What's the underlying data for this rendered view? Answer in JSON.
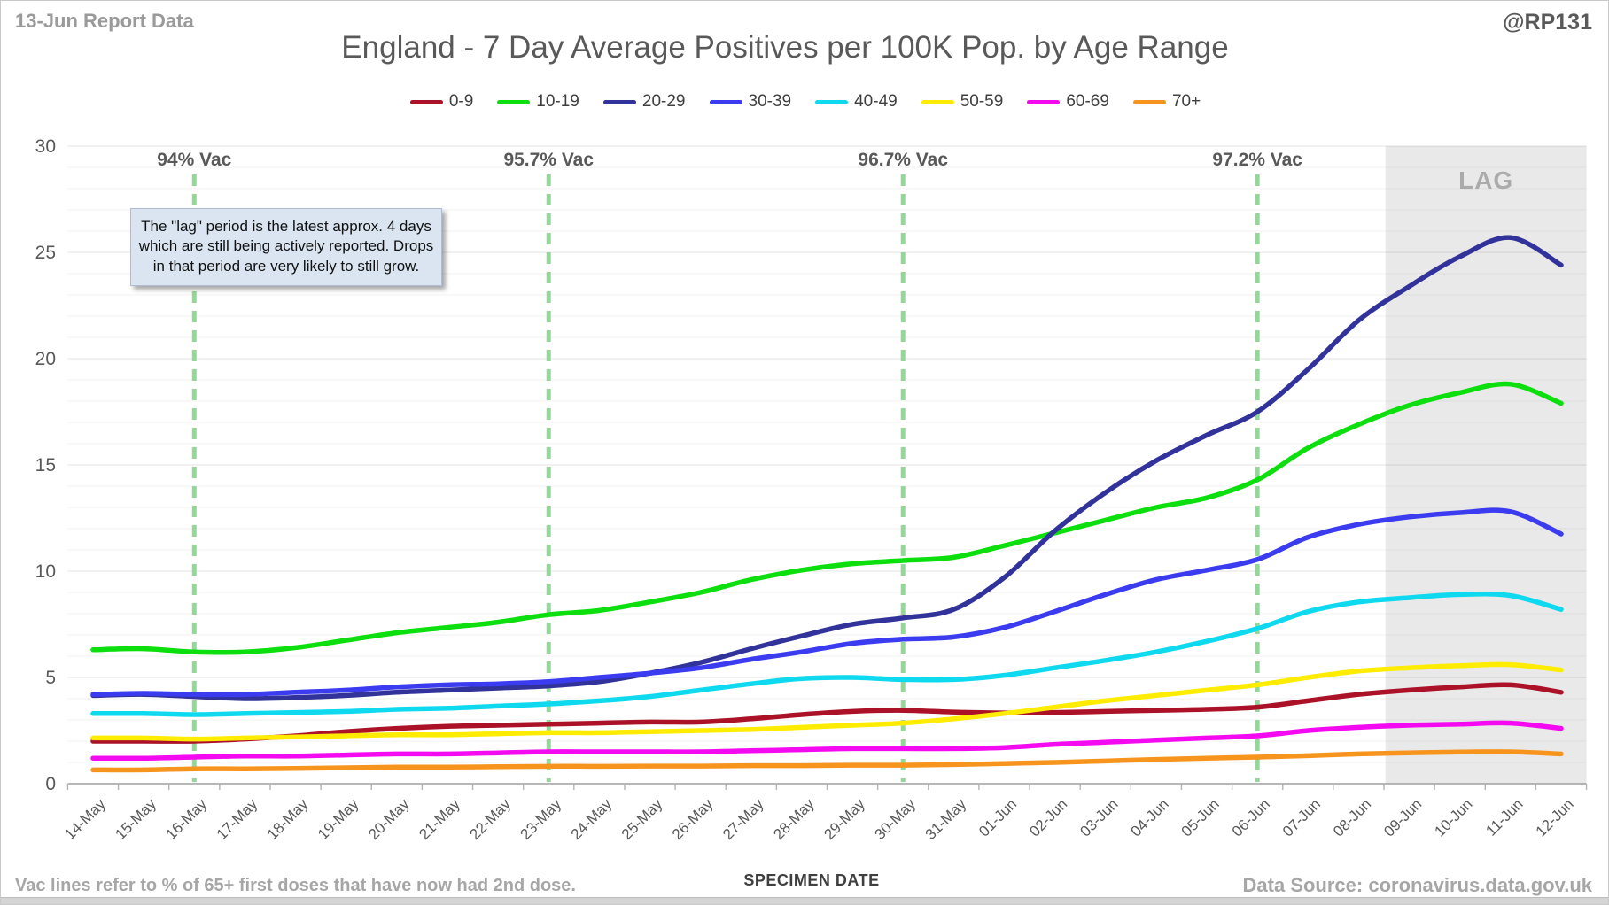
{
  "header": {
    "report_label": "13-Jun Report Data",
    "handle": "@RP131",
    "title": "England - 7 Day Average Positives per 100K Pop. by Age Range"
  },
  "annotation": {
    "lines": [
      "The \"lag\" period is the latest approx. 4 days",
      "which are still being actively reported. Drops",
      "in that period are very likely to still grow."
    ]
  },
  "footer": {
    "vac_note": "Vac lines refer to % of 65+ first doses that have now had 2nd dose.",
    "xaxis_title": "SPECIMEN DATE",
    "source": "Data Source: coronavirus.data.gov.uk"
  },
  "colors": {
    "grid_minor": "rgba(0,0,0,0.05)",
    "grid_major": "rgba(0,0,0,0.11)",
    "axis_line": "#9f9f9f",
    "tick": "#b5b5b5",
    "axis_text": "#595959",
    "vac_line": "#8fd694",
    "vac_text": "#595959",
    "lag_fill": "#e9e9e9",
    "lag_text": "#ababab"
  },
  "chart_data": {
    "type": "line",
    "title": "England - 7 Day Average Positives per 100K Pop. by Age Range",
    "xlabel": "SPECIMEN DATE",
    "ylabel": "",
    "ylim": [
      0,
      30
    ],
    "y_major_step": 5,
    "y_minor_step": 1,
    "grid": true,
    "legend_position": "top",
    "categories": [
      "14-May",
      "15-May",
      "16-May",
      "17-May",
      "18-May",
      "19-May",
      "20-May",
      "21-May",
      "22-May",
      "23-May",
      "24-May",
      "25-May",
      "26-May",
      "27-May",
      "28-May",
      "29-May",
      "30-May",
      "31-May",
      "01-Jun",
      "02-Jun",
      "03-Jun",
      "04-Jun",
      "05-Jun",
      "06-Jun",
      "07-Jun",
      "08-Jun",
      "09-Jun",
      "10-Jun",
      "11-Jun",
      "12-Jun"
    ],
    "series": [
      {
        "name": "0-9",
        "color": "#ab1228",
        "values": [
          2.0,
          2.0,
          2.0,
          2.1,
          2.25,
          2.45,
          2.6,
          2.7,
          2.75,
          2.8,
          2.85,
          2.9,
          2.9,
          3.05,
          3.25,
          3.4,
          3.45,
          3.37,
          3.33,
          3.35,
          3.4,
          3.45,
          3.5,
          3.6,
          3.9,
          4.2,
          4.4,
          4.55,
          4.65,
          4.3
        ]
      },
      {
        "name": "10-19",
        "color": "#0dde0d",
        "values": [
          6.3,
          6.35,
          6.2,
          6.2,
          6.4,
          6.75,
          7.1,
          7.35,
          7.6,
          7.95,
          8.15,
          8.55,
          9.0,
          9.6,
          10.05,
          10.35,
          10.5,
          10.65,
          11.2,
          11.8,
          12.4,
          13.0,
          13.45,
          14.3,
          15.8,
          16.9,
          17.8,
          18.4,
          18.8,
          17.9
        ]
      },
      {
        "name": "20-29",
        "color": "#31339b",
        "values": [
          4.15,
          4.2,
          4.1,
          4.0,
          4.05,
          4.15,
          4.3,
          4.4,
          4.5,
          4.6,
          4.8,
          5.2,
          5.7,
          6.35,
          6.95,
          7.5,
          7.8,
          8.2,
          9.7,
          11.9,
          13.7,
          15.2,
          16.4,
          17.5,
          19.5,
          21.8,
          23.4,
          24.8,
          25.7,
          24.4
        ]
      },
      {
        "name": "30-39",
        "color": "#3b3bf0",
        "values": [
          4.2,
          4.25,
          4.2,
          4.2,
          4.3,
          4.4,
          4.55,
          4.65,
          4.7,
          4.8,
          5.0,
          5.2,
          5.45,
          5.85,
          6.2,
          6.6,
          6.8,
          6.9,
          7.35,
          8.1,
          8.9,
          9.6,
          10.05,
          10.55,
          11.6,
          12.2,
          12.55,
          12.75,
          12.8,
          11.75
        ]
      },
      {
        "name": "40-49",
        "color": "#0fd9ee",
        "values": [
          3.3,
          3.3,
          3.25,
          3.3,
          3.35,
          3.4,
          3.5,
          3.55,
          3.65,
          3.75,
          3.9,
          4.1,
          4.4,
          4.7,
          4.95,
          5.0,
          4.9,
          4.9,
          5.1,
          5.45,
          5.8,
          6.2,
          6.7,
          7.3,
          8.1,
          8.55,
          8.75,
          8.9,
          8.85,
          8.2
        ]
      },
      {
        "name": "50-59",
        "color": "#ffec00",
        "values": [
          2.15,
          2.15,
          2.1,
          2.15,
          2.2,
          2.25,
          2.3,
          2.3,
          2.35,
          2.4,
          2.4,
          2.45,
          2.5,
          2.55,
          2.65,
          2.75,
          2.85,
          3.05,
          3.3,
          3.6,
          3.9,
          4.15,
          4.4,
          4.65,
          5.0,
          5.3,
          5.45,
          5.55,
          5.6,
          5.35
        ]
      },
      {
        "name": "60-69",
        "color": "#f40af0",
        "values": [
          1.2,
          1.2,
          1.25,
          1.3,
          1.3,
          1.35,
          1.4,
          1.4,
          1.45,
          1.5,
          1.5,
          1.5,
          1.5,
          1.55,
          1.6,
          1.65,
          1.65,
          1.65,
          1.7,
          1.85,
          1.95,
          2.05,
          2.15,
          2.25,
          2.5,
          2.65,
          2.75,
          2.8,
          2.85,
          2.6
        ]
      },
      {
        "name": "70+",
        "color": "#f7941e",
        "values": [
          0.65,
          0.65,
          0.7,
          0.7,
          0.72,
          0.75,
          0.78,
          0.78,
          0.8,
          0.82,
          0.82,
          0.83,
          0.83,
          0.85,
          0.85,
          0.87,
          0.87,
          0.9,
          0.95,
          1.0,
          1.07,
          1.14,
          1.2,
          1.25,
          1.32,
          1.4,
          1.45,
          1.49,
          1.5,
          1.4
        ]
      }
    ],
    "vac_lines": [
      {
        "label": "94% Vac",
        "index": 2
      },
      {
        "label": "95.7% Vac",
        "index": 9
      },
      {
        "label": "96.7% Vac",
        "index": 16
      },
      {
        "label": "97.2% Vac",
        "index": 23
      }
    ],
    "lag": {
      "label": "LAG",
      "start_index": 25.53,
      "end_index": 29.5
    }
  }
}
